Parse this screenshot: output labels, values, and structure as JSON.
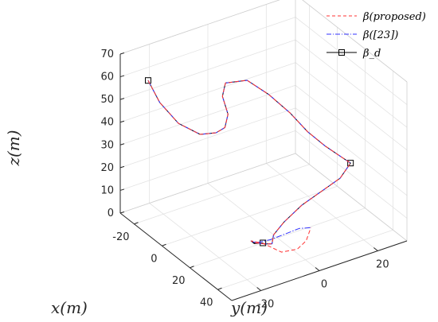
{
  "chart_data": {
    "type": "line",
    "projection": "3d",
    "xlabel": "x(m)",
    "ylabel": "y(m)",
    "zlabel": "z(m)",
    "xlim": [
      -30,
      50
    ],
    "ylim": [
      -30,
      30
    ],
    "zlim": [
      0,
      70
    ],
    "xticks": [
      "-20",
      "0",
      "20",
      "40"
    ],
    "yticks": [
      "-20",
      "0",
      "20"
    ],
    "zticks": [
      "0",
      "10",
      "20",
      "30",
      "40",
      "50",
      "60",
      "70"
    ],
    "grid": true,
    "legend_position": "top-right",
    "series": [
      {
        "name": "β(proposed)",
        "style": "dashed",
        "color": "#ff3333",
        "points": [
          [
            -10,
            -30,
            68
          ],
          [
            -8,
            -27,
            58
          ],
          [
            -5,
            -22,
            48
          ],
          [
            -2,
            -16,
            42
          ],
          [
            -1,
            -11,
            41
          ],
          [
            -1,
            -8,
            42
          ],
          [
            -3,
            -6,
            46
          ],
          [
            -7,
            -6,
            52
          ],
          [
            -9,
            -4,
            56
          ],
          [
            -6,
            2,
            56
          ],
          [
            -1,
            7,
            50
          ],
          [
            4,
            12,
            42
          ],
          [
            8,
            16,
            34
          ],
          [
            12,
            20,
            28
          ],
          [
            16,
            24,
            23
          ],
          [
            20,
            25,
            22
          ],
          [
            23,
            20,
            19
          ],
          [
            26,
            12,
            18
          ],
          [
            29,
            4,
            17
          ],
          [
            33,
            -4,
            15
          ],
          [
            36,
            -9,
            13
          ],
          [
            37,
            -10,
            10
          ],
          [
            33,
            -10,
            8
          ],
          [
            27,
            -11,
            6
          ],
          [
            22,
            -10,
            4
          ],
          [
            20,
            -8,
            2
          ],
          [
            21,
            -5,
            0
          ],
          [
            27,
            -2,
            -2
          ],
          [
            30,
            2,
            -1
          ],
          [
            28,
            6,
            0
          ],
          [
            25,
            9,
            3
          ]
        ]
      },
      {
        "name": "β([23])",
        "style": "dashdot",
        "color": "#3333ff",
        "points": [
          [
            -10,
            -30,
            68
          ],
          [
            -8,
            -27,
            58
          ],
          [
            -5,
            -22,
            48
          ],
          [
            -2,
            -16,
            42
          ],
          [
            -1,
            -11,
            41
          ],
          [
            -1,
            -8,
            42
          ],
          [
            -3,
            -6,
            46
          ],
          [
            -7,
            -6,
            52
          ],
          [
            -9,
            -4,
            56
          ],
          [
            -6,
            2,
            56
          ],
          [
            -1,
            7,
            50
          ],
          [
            4,
            12,
            42
          ],
          [
            8,
            16,
            34
          ],
          [
            12,
            20,
            28
          ],
          [
            16,
            24,
            23
          ],
          [
            20,
            25,
            22
          ],
          [
            23,
            20,
            19
          ],
          [
            26,
            12,
            18
          ],
          [
            29,
            4,
            17
          ],
          [
            33,
            -4,
            15
          ],
          [
            36,
            -9,
            13
          ],
          [
            37,
            -10,
            10
          ],
          [
            33,
            -10,
            8
          ],
          [
            27,
            -11,
            6
          ],
          [
            22,
            -10,
            4
          ],
          [
            20,
            -7,
            1
          ],
          [
            21,
            -3,
            1
          ],
          [
            22,
            2,
            2
          ],
          [
            23,
            6,
            3
          ],
          [
            25,
            9,
            3
          ]
        ]
      },
      {
        "name": "β_d",
        "style": "solid-square",
        "color": "#000000",
        "points": [
          [
            -10,
            -30,
            68
          ],
          [
            -8,
            -27,
            58
          ],
          [
            -5,
            -22,
            48
          ],
          [
            -2,
            -16,
            42
          ],
          [
            -1,
            -11,
            41
          ],
          [
            -1,
            -8,
            42
          ],
          [
            -3,
            -6,
            46
          ],
          [
            -7,
            -6,
            52
          ],
          [
            -9,
            -4,
            56
          ],
          [
            -6,
            2,
            56
          ],
          [
            -1,
            7,
            50
          ],
          [
            4,
            12,
            42
          ],
          [
            8,
            16,
            34
          ],
          [
            12,
            20,
            28
          ],
          [
            16,
            24,
            23
          ],
          [
            20,
            25,
            22
          ],
          [
            23,
            20,
            19
          ],
          [
            26,
            12,
            18
          ],
          [
            29,
            4,
            17
          ],
          [
            33,
            -4,
            15
          ],
          [
            36,
            -9,
            13
          ],
          [
            37,
            -10,
            10
          ],
          [
            33,
            -10,
            8
          ],
          [
            27,
            -11,
            6
          ],
          [
            22,
            -10,
            4
          ],
          [
            20,
            -8,
            1
          ],
          [
            20,
            -5,
            0
          ]
        ],
        "markers": [
          [
            -10,
            -30,
            68
          ],
          [
            20,
            25,
            22
          ],
          [
            20,
            -5,
            0
          ]
        ]
      }
    ]
  }
}
